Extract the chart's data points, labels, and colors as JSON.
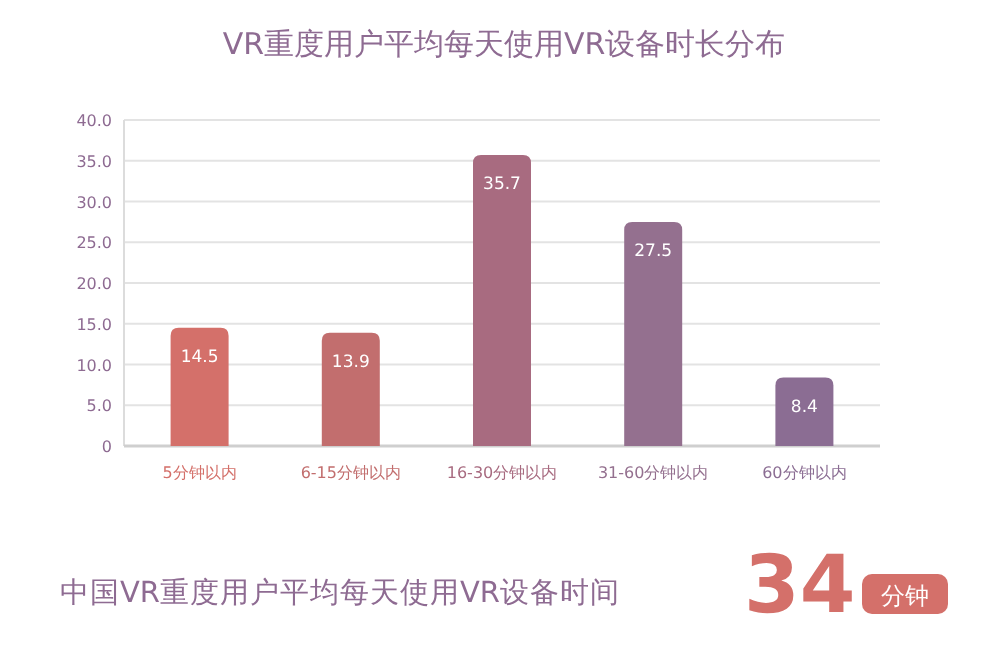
{
  "chart_data": {
    "type": "bar",
    "title": "VR重度用户平均每天使用VR设备时长分布",
    "categories": [
      "5分钟以内",
      "6-15分钟以内",
      "16-30分钟以内",
      "31-60分钟以内",
      "60分钟以内"
    ],
    "values": [
      14.5,
      13.9,
      35.7,
      27.5,
      8.4
    ],
    "colors": [
      "#d4706a",
      "#c26e6e",
      "#a86b80",
      "#94708f",
      "#8b6d93"
    ],
    "ylim": [
      0,
      40
    ],
    "yticks": [
      0,
      {
        "value": 5,
        "label": "5.0"
      },
      {
        "value": 10,
        "label": "10.0"
      },
      {
        "value": 15,
        "label": "15.0"
      },
      {
        "value": 20,
        "label": "20.0"
      },
      {
        "value": 25,
        "label": "25.0"
      },
      {
        "value": 30,
        "label": "30.0"
      },
      {
        "value": 35,
        "label": "35.0"
      },
      {
        "value": 40,
        "label": "40.0"
      }
    ],
    "grid": "y",
    "data_labels": true,
    "annotations": [
      "中国VR重度用户平均每天使用VR设备时间",
      "34",
      "分钟"
    ]
  }
}
